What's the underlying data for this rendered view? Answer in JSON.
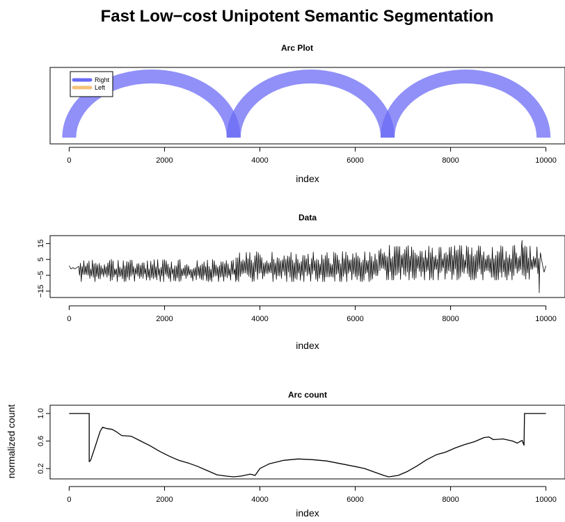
{
  "title": "Fast Low−cost Unipotent Semantic Segmentation",
  "colors": {
    "right": "#6b6bf5",
    "overlap": "#3a3aee",
    "left": "#f5c27a",
    "line": "#000000"
  },
  "chart_data": [
    {
      "type": "arc",
      "title": "Arc Plot",
      "xlabel": "index",
      "ylabel": "",
      "xlim": [
        -400,
        10400
      ],
      "xticks": [
        0,
        2000,
        4000,
        6000,
        8000,
        10000
      ],
      "legend": {
        "position": "top-left",
        "entries": [
          "Right",
          "Left"
        ]
      },
      "arcs": [
        {
          "from": 0,
          "to": 3450,
          "series": "Right"
        },
        {
          "from": 3450,
          "to": 6680,
          "series": "Right"
        },
        {
          "from": 6680,
          "to": 9950,
          "series": "Right"
        }
      ]
    },
    {
      "type": "line",
      "title": "Data",
      "xlabel": "index",
      "ylabel": "",
      "xlim": [
        -400,
        10400
      ],
      "ylim": [
        -19,
        20
      ],
      "xticks": [
        0,
        2000,
        4000,
        6000,
        8000,
        10000
      ],
      "yticks": [
        -15,
        -5,
        5,
        15
      ],
      "segments": [
        {
          "from": 0,
          "to": 200,
          "low": -1,
          "high": 1
        },
        {
          "from": 200,
          "to": 3500,
          "low": -9,
          "high": 5
        },
        {
          "from": 3500,
          "to": 6500,
          "low": -9,
          "high": 10
        },
        {
          "from": 6500,
          "to": 9900,
          "low": -8,
          "high": 14
        }
      ],
      "extremes": [
        {
          "x": 9500,
          "y": 17
        },
        {
          "x": 9860,
          "y": -16
        }
      ]
    },
    {
      "type": "line",
      "title": "Arc count",
      "xlabel": "index",
      "ylabel": "normalized count",
      "xlim": [
        -400,
        10400
      ],
      "ylim": [
        0.05,
        1.12
      ],
      "xticks": [
        0,
        2000,
        4000,
        6000,
        8000,
        10000
      ],
      "yticks": [
        0.2,
        0.6,
        1.0
      ],
      "x": [
        0,
        420,
        420,
        450,
        560,
        650,
        700,
        800,
        900,
        1000,
        1100,
        1300,
        1500,
        1700,
        1900,
        2100,
        2300,
        2500,
        2700,
        2900,
        3100,
        3300,
        3450,
        3600,
        3800,
        3900,
        4000,
        4200,
        4500,
        4800,
        5100,
        5400,
        5700,
        6000,
        6200,
        6400,
        6600,
        6700,
        6900,
        7100,
        7300,
        7500,
        7700,
        7900,
        8100,
        8300,
        8500,
        8700,
        8800,
        8900,
        9100,
        9300,
        9400,
        9500,
        9540,
        9550,
        10000
      ],
      "y": [
        1.0,
        1.0,
        0.3,
        0.32,
        0.55,
        0.74,
        0.8,
        0.78,
        0.77,
        0.73,
        0.68,
        0.67,
        0.6,
        0.53,
        0.45,
        0.38,
        0.32,
        0.28,
        0.23,
        0.17,
        0.11,
        0.09,
        0.08,
        0.09,
        0.12,
        0.1,
        0.2,
        0.27,
        0.32,
        0.34,
        0.33,
        0.31,
        0.27,
        0.23,
        0.2,
        0.15,
        0.1,
        0.08,
        0.1,
        0.16,
        0.24,
        0.33,
        0.4,
        0.44,
        0.5,
        0.55,
        0.59,
        0.65,
        0.66,
        0.62,
        0.63,
        0.6,
        0.57,
        0.61,
        0.54,
        1.0,
        1.0
      ]
    }
  ]
}
